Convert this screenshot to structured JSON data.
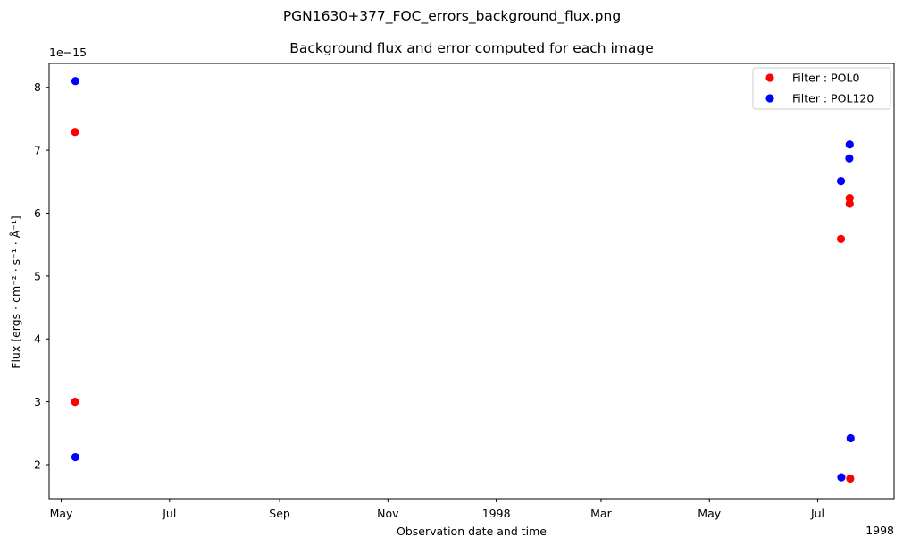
{
  "figure": {
    "suptitle": "PGN1630+377_FOC_errors_background_flux.png"
  },
  "chart_data": {
    "type": "scatter",
    "title": "Background flux and error computed for each image",
    "xlabel": "Observation date and time",
    "ylabel": "Flux [ergs · cm⁻² · s⁻¹ · Å⁻¹]",
    "y_scale_label": "1e−15",
    "x_offset_label": "1998",
    "x_unit": "days since 1997-04-01",
    "xlim": [
      23.2,
      499
    ],
    "ylim": [
      1.46,
      8.38
    ],
    "x_ticks": [
      {
        "x": 30,
        "label": "May"
      },
      {
        "x": 91,
        "label": "Jul"
      },
      {
        "x": 153,
        "label": "Sep"
      },
      {
        "x": 214,
        "label": "Nov"
      },
      {
        "x": 275,
        "label": "1998"
      },
      {
        "x": 334,
        "label": "Mar"
      },
      {
        "x": 395,
        "label": "May"
      },
      {
        "x": 456,
        "label": "Jul"
      }
    ],
    "y_ticks": [
      2,
      3,
      4,
      5,
      6,
      7,
      8
    ],
    "legend_position": "top-right",
    "series": [
      {
        "name": "Filter : POL0",
        "color": "#ff0000",
        "points": [
          {
            "x": 37.8,
            "y": 7.29
          },
          {
            "x": 37.8,
            "y": 3.0
          },
          {
            "x": 469.1,
            "y": 5.59
          },
          {
            "x": 474.0,
            "y": 6.24
          },
          {
            "x": 474.0,
            "y": 6.15
          },
          {
            "x": 474.3,
            "y": 1.78
          }
        ]
      },
      {
        "name": "Filter : POL120",
        "color": "#0000ff",
        "points": [
          {
            "x": 38.0,
            "y": 8.1
          },
          {
            "x": 38.0,
            "y": 2.12
          },
          {
            "x": 469.1,
            "y": 6.51
          },
          {
            "x": 474.0,
            "y": 7.09
          },
          {
            "x": 473.8,
            "y": 6.87
          },
          {
            "x": 474.5,
            "y": 2.42
          },
          {
            "x": 469.3,
            "y": 1.8
          }
        ]
      }
    ]
  }
}
